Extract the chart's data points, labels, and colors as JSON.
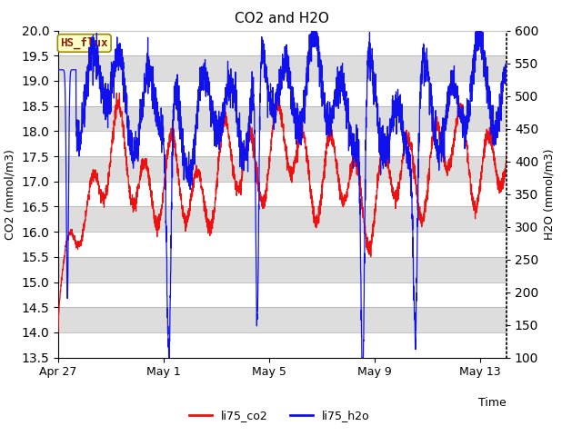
{
  "title": "CO2 and H2O",
  "xlabel": "Time",
  "ylabel_left": "CO2 (mmol/m3)",
  "ylabel_right": "H2O (mmol/m3)",
  "co2_ylim": [
    13.5,
    20.0
  ],
  "h2o_ylim": [
    100,
    600
  ],
  "co2_color": "#EE1111",
  "h2o_color": "#1111EE",
  "bg_color": "#FFFFFF",
  "strip_color": "#DDDDDD",
  "annotation_text": "HS_flux",
  "annotation_bg": "#FFFFCC",
  "annotation_border": "#998800",
  "annotation_fg": "#882200",
  "legend_co2": "li75_co2",
  "legend_h2o": "li75_h2o",
  "x_tick_labels": [
    "Apr 27",
    "May 1",
    "May 5",
    "May 9",
    "May 13"
  ],
  "x_tick_positions": [
    0,
    4,
    8,
    12,
    16
  ],
  "total_days": 17,
  "figsize": [
    6.4,
    4.8
  ],
  "dpi": 100
}
